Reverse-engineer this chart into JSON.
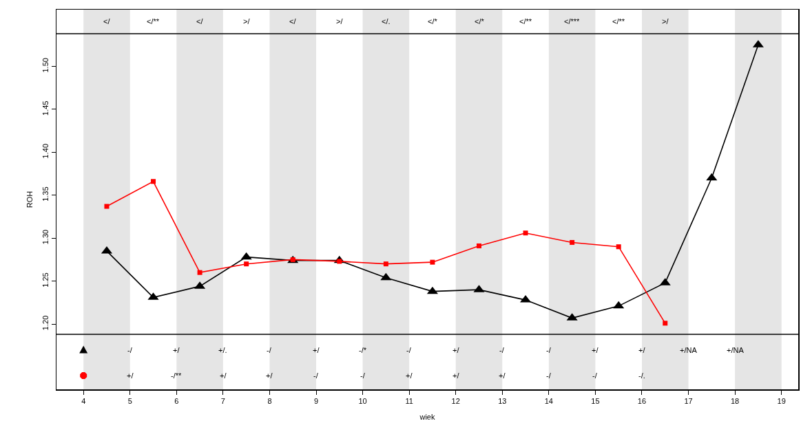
{
  "chart_data": {
    "type": "line",
    "xlabel": "wiek",
    "ylabel": "ROH",
    "x": [
      4.5,
      5.5,
      6.5,
      7.5,
      8.5,
      9.5,
      10.5,
      11.5,
      12.5,
      13.5,
      14.5,
      15.5,
      16.5,
      17.5,
      18.5
    ],
    "series": [
      {
        "color": "#000000",
        "marker": "triangle",
        "values": [
          1.285,
          1.231,
          1.244,
          1.278,
          1.274,
          1.274,
          1.254,
          1.238,
          1.24,
          1.228,
          1.207,
          1.221,
          1.248,
          1.37,
          1.525
        ]
      },
      {
        "color": "#ff0000",
        "marker": "square",
        "values": [
          1.337,
          1.366,
          1.26,
          1.27,
          1.275,
          1.273,
          1.27,
          1.272,
          1.291,
          1.306,
          1.295,
          1.29,
          1.201,
          null,
          null
        ]
      }
    ],
    "xlim": [
      3.42,
      19.36
    ],
    "xticks": [
      4,
      5,
      6,
      7,
      8,
      9,
      10,
      11,
      12,
      13,
      14,
      15,
      16,
      17,
      18,
      19
    ],
    "ylim": [
      1.124,
      1.566
    ],
    "yticks": [
      {
        "value": 1.2,
        "label": "1.20"
      },
      {
        "value": 1.25,
        "label": "1.25"
      },
      {
        "value": 1.3,
        "label": "1.30"
      },
      {
        "value": 1.35,
        "label": "1.35"
      },
      {
        "value": 1.4,
        "label": "1.40"
      },
      {
        "value": 1.45,
        "label": "1.45"
      },
      {
        "value": 1.5,
        "label": "1.50"
      }
    ],
    "grid": false,
    "line_style": "solid",
    "bands": [
      {
        "axis": "x",
        "from": 4,
        "to": 5,
        "color": "#e5e5e5"
      },
      {
        "axis": "x",
        "from": 6,
        "to": 7,
        "color": "#e5e5e5"
      },
      {
        "axis": "x",
        "from": 8,
        "to": 9,
        "color": "#e5e5e5"
      },
      {
        "axis": "x",
        "from": 10,
        "to": 11,
        "color": "#e5e5e5"
      },
      {
        "axis": "x",
        "from": 12,
        "to": 13,
        "color": "#e5e5e5"
      },
      {
        "axis": "x",
        "from": 14,
        "to": 15,
        "color": "#e5e5e5"
      },
      {
        "axis": "x",
        "from": 16,
        "to": 17,
        "color": "#e5e5e5"
      },
      {
        "axis": "x",
        "from": 18,
        "to": 19,
        "color": "#e5e5e5"
      }
    ],
    "ref_lines": [
      {
        "axis": "y",
        "value": 1.538,
        "color": "#000000"
      },
      {
        "axis": "y",
        "value": 1.188,
        "color": "#000000"
      }
    ],
    "annotations": [
      "</",
      "</**",
      "</",
      ">/",
      "</",
      ">/",
      "</.",
      "</*",
      "</*",
      "</**",
      "</***",
      "</**",
      ">/",
      {
        "text": "-/",
        "x": 5,
        "y": 1.17
      },
      {
        "text": "+/",
        "x": 6,
        "y": 1.17
      },
      {
        "text": "+/.",
        "x": 7,
        "y": 1.17
      },
      {
        "text": "-/",
        "x": 8,
        "y": 1.17
      },
      {
        "text": "+/",
        "x": 9,
        "y": 1.17
      },
      {
        "text": "-/*",
        "x": 10,
        "y": 1.17
      },
      {
        "text": "-/",
        "x": 11,
        "y": 1.17
      },
      {
        "text": "+/",
        "x": 12,
        "y": 1.17
      },
      {
        "text": "-/",
        "x": 13,
        "y": 1.17
      },
      {
        "text": "-/",
        "x": 14,
        "y": 1.17
      },
      {
        "text": "+/",
        "x": 15,
        "y": 1.17
      },
      {
        "text": "+/",
        "x": 16,
        "y": 1.17
      },
      {
        "text": "+/NA",
        "x": 17,
        "y": 1.17
      },
      {
        "text": "+/NA",
        "x": 18,
        "y": 1.17
      },
      {
        "text": "+/",
        "x": 5,
        "y": 1.14
      },
      {
        "text": "-/**",
        "x": 6,
        "y": 1.14
      },
      {
        "text": "+/",
        "x": 7,
        "y": 1.14
      },
      {
        "text": "+/",
        "x": 8,
        "y": 1.14
      },
      {
        "text": "-/",
        "x": 9,
        "y": 1.14
      },
      {
        "text": "-/",
        "x": 10,
        "y": 1.14
      },
      {
        "text": "+/",
        "x": 11,
        "y": 1.14
      },
      {
        "text": "+/",
        "x": 12,
        "y": 1.14
      },
      {
        "text": "+/",
        "x": 13,
        "y": 1.14
      },
      {
        "text": "-/",
        "x": 14,
        "y": 1.14
      },
      {
        "text": "-/",
        "x": 15,
        "y": 1.14
      },
      {
        "text": "-/.",
        "x": 16,
        "y": 1.14
      }
    ]
  }
}
